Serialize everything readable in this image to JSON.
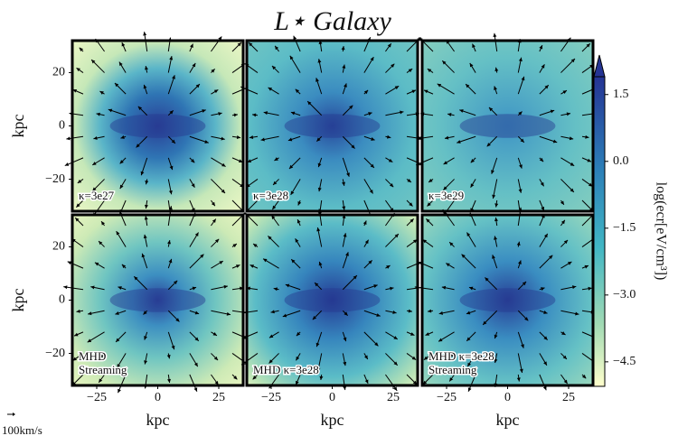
{
  "chart_data": {
    "type": "heatmap",
    "title": "L⋆ Galaxy",
    "xlabel": "kpc",
    "ylabel": "kpc",
    "xlim": [
      -35,
      35
    ],
    "ylim": [
      -32,
      32
    ],
    "xticks": [
      {
        "value": -25,
        "label": "−25"
      },
      0,
      25
    ],
    "yticks": [
      {
        "value": -20,
        "label": "−20"
      },
      0,
      20
    ],
    "panels": [
      {
        "label": [
          "κ=3e27"
        ]
      },
      {
        "label": [
          "κ=3e28"
        ]
      },
      {
        "label": [
          "κ=3e29"
        ]
      },
      {
        "label": [
          "MHD",
          "Streaming"
        ]
      },
      {
        "label": [
          "MHD κ=3e28"
        ]
      },
      {
        "label": [
          "MHD κ=3e28",
          "Streaming"
        ]
      }
    ],
    "colorbar": {
      "label": "log(ecr[eV/cm³])",
      "lim": [
        -5.05,
        1.9
      ],
      "ticks": [
        {
          "value": 1.5,
          "label": "1.5"
        },
        {
          "value": 0,
          "label": "0.0"
        },
        {
          "value": -1.5,
          "label": "−1.5"
        },
        {
          "value": -3,
          "label": "−3.0"
        },
        {
          "value": -4.5,
          "label": "−4.5"
        }
      ]
    },
    "quiver_key": "100km/s"
  }
}
